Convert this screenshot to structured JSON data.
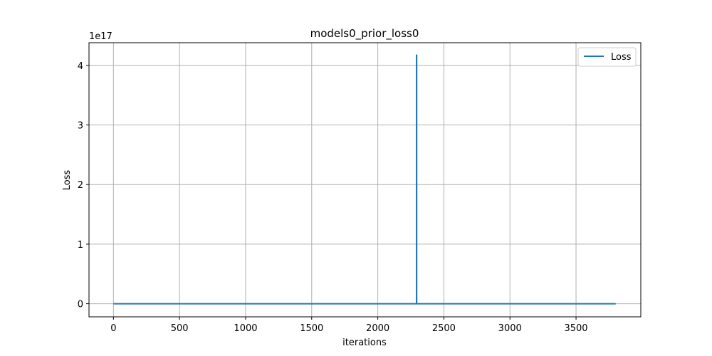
{
  "chart_data": {
    "type": "line",
    "title": "models0_prior_loss0",
    "xlabel": "iterations",
    "ylabel": "Loss",
    "y_offset_label": "1e17",
    "xlim": [
      -185,
      3990
    ],
    "ylim": [
      -2.2e+16,
      4.38e+17
    ],
    "x_ticks": [
      0,
      500,
      1000,
      1500,
      2000,
      2500,
      3000,
      3500
    ],
    "y_ticks": [
      0,
      1,
      2,
      3,
      4
    ],
    "y_tick_scale": 1e+17,
    "grid": true,
    "legend": {
      "position": "top-right"
    },
    "series": [
      {
        "name": "Loss",
        "color": "#1f77b4",
        "points": [
          [
            0,
            0
          ],
          [
            2293,
            0
          ],
          [
            2293,
            4.17e+17
          ],
          [
            2294,
            4.17e+17
          ],
          [
            2294,
            0
          ],
          [
            3800,
            0
          ]
        ]
      }
    ]
  }
}
